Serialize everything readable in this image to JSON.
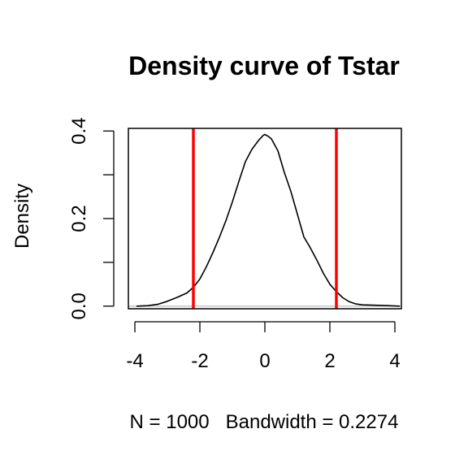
{
  "chart_data": {
    "type": "line",
    "title": "Density curve of Tstar",
    "xlabel": "N = 1000   Bandwidth = 0.2274",
    "ylabel": "Density",
    "xlim": [
      -4.2,
      4.2
    ],
    "ylim": [
      -0.006,
      0.406
    ],
    "x_ticks": [
      -4,
      -2,
      0,
      2,
      4
    ],
    "x_tick_labels": [
      "-4",
      "-2",
      "0",
      "2",
      "4"
    ],
    "y_ticks": [
      0.0,
      0.1,
      0.2,
      0.3,
      0.4
    ],
    "y_tick_labels": [
      "0.0",
      "",
      "0.2",
      "",
      "0.4"
    ],
    "grid": false,
    "baseline_color": "#bebebe",
    "series": [
      {
        "color": "#000000",
        "x": [
          -3.95,
          -3.6,
          -3.3,
          -3.0,
          -2.7,
          -2.4,
          -2.2,
          -2.0,
          -1.8,
          -1.6,
          -1.4,
          -1.2,
          -1.0,
          -0.8,
          -0.6,
          -0.4,
          -0.2,
          -0.05,
          0.0,
          0.1,
          0.2,
          0.4,
          0.6,
          0.8,
          1.0,
          1.2,
          1.4,
          1.6,
          1.8,
          2.0,
          2.2,
          2.4,
          2.6,
          2.8,
          3.0,
          3.4,
          3.8,
          4.15
        ],
        "y": [
          0.0,
          0.001,
          0.004,
          0.011,
          0.02,
          0.03,
          0.043,
          0.062,
          0.09,
          0.122,
          0.157,
          0.195,
          0.238,
          0.285,
          0.33,
          0.358,
          0.378,
          0.39,
          0.392,
          0.388,
          0.382,
          0.355,
          0.305,
          0.262,
          0.21,
          0.158,
          0.133,
          0.105,
          0.075,
          0.05,
          0.033,
          0.019,
          0.01,
          0.005,
          0.003,
          0.002,
          0.001,
          0.0
        ]
      }
    ],
    "vertical_lines": [
      {
        "x": -2.2,
        "color": "#ff0000"
      },
      {
        "x": 2.2,
        "color": "#ff0000"
      }
    ]
  }
}
